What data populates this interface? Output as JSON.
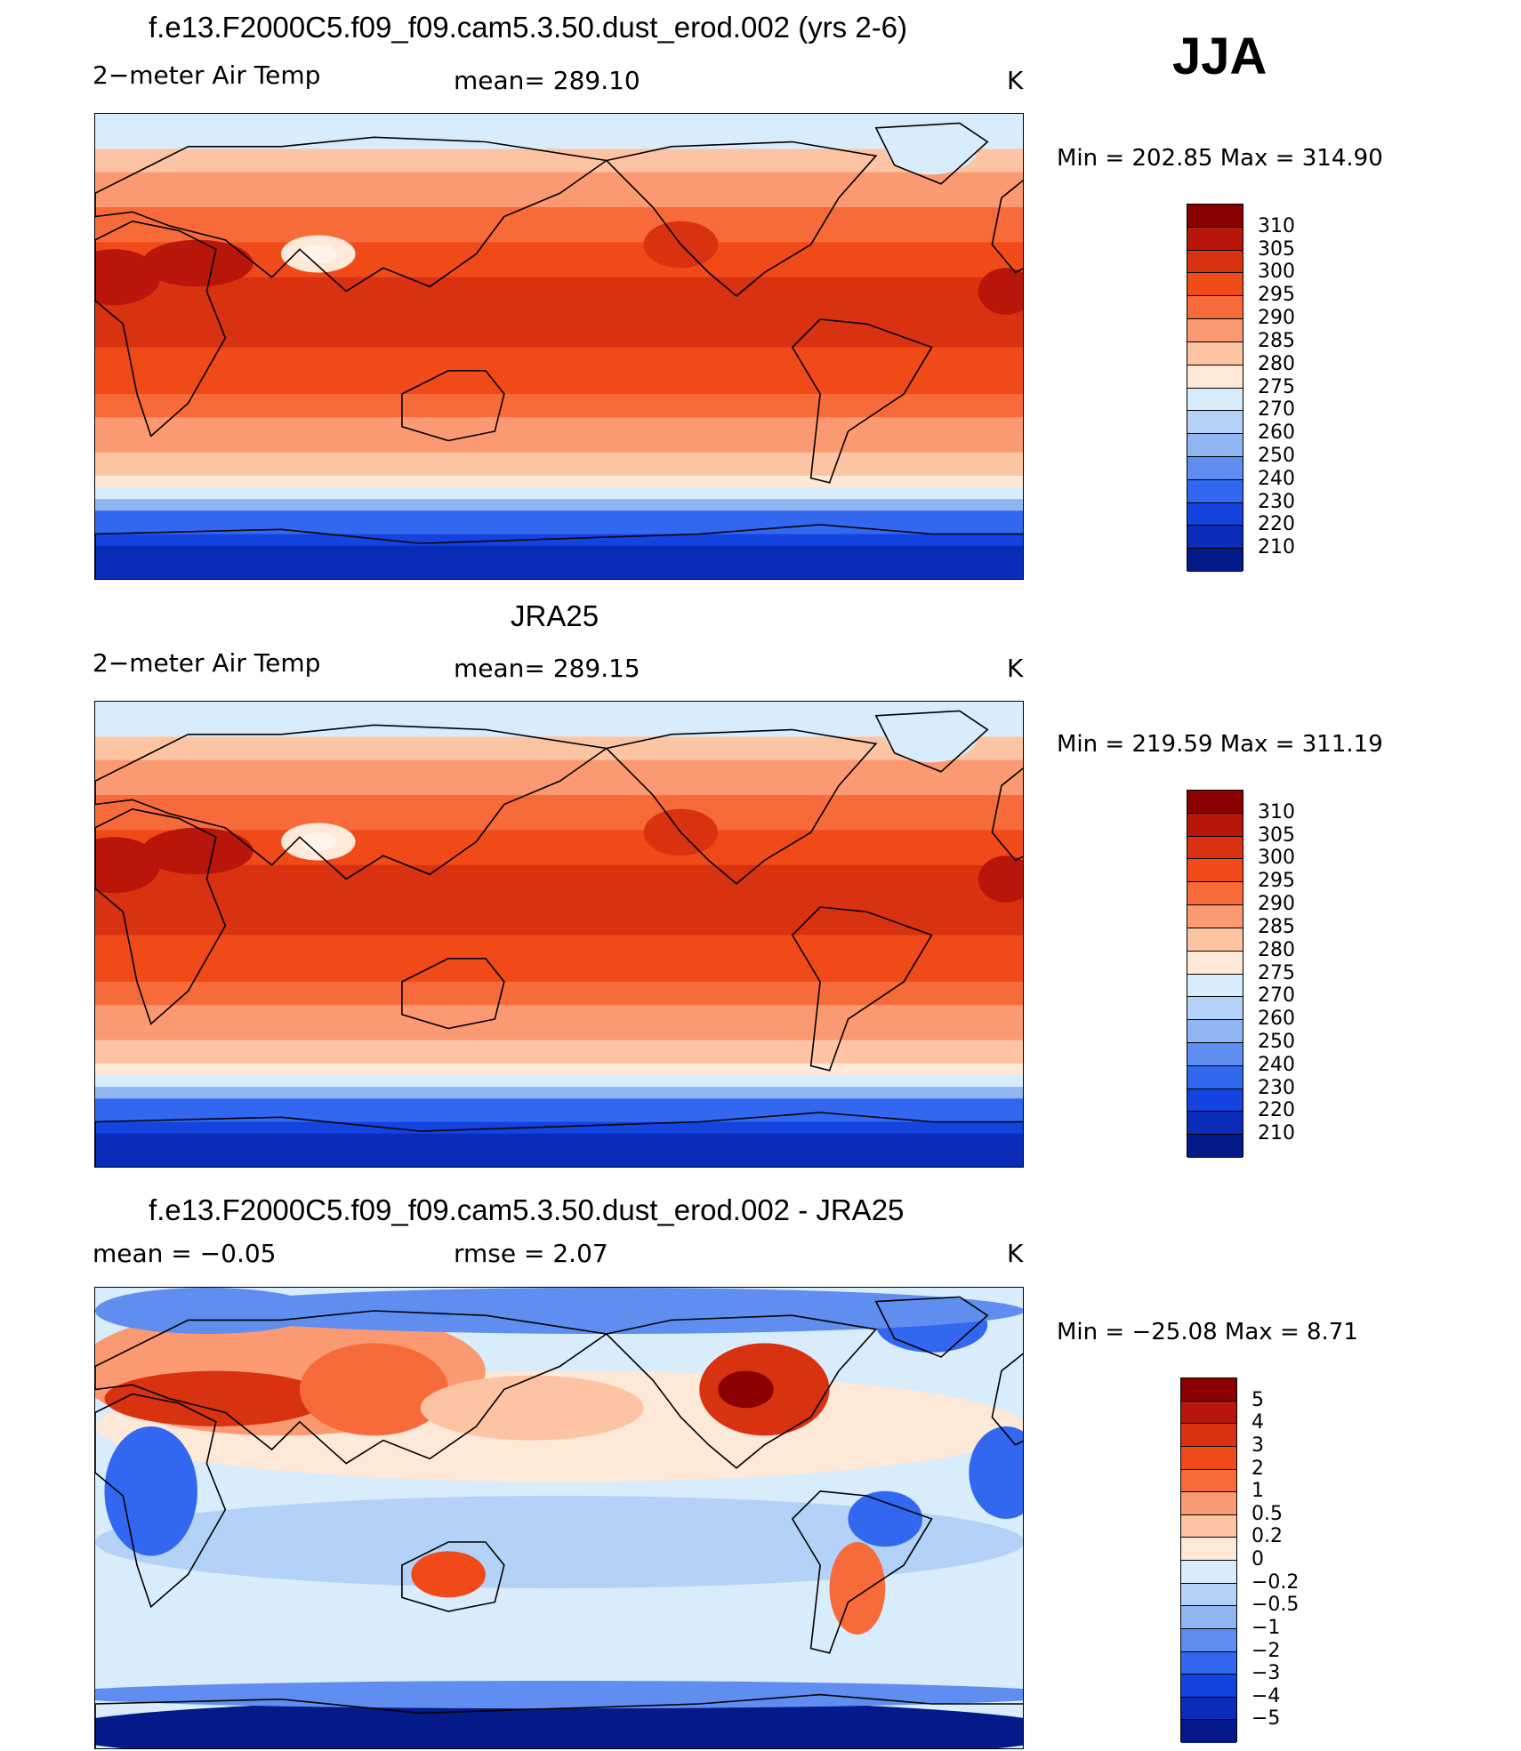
{
  "season": "JJA",
  "panels": [
    {
      "id": "model",
      "title": "f.e13.F2000C5.f09_f09.cam5.3.50.dust_erod.002 (yrs 2-6)",
      "left_label": "2−meter Air Temp",
      "center_label": "mean= 289.10",
      "units": "K",
      "minmax": "Min  =  202.85  Max  =  314.90",
      "colorbar_ticks": [
        "310",
        "305",
        "300",
        "295",
        "290",
        "285",
        "280",
        "275",
        "270",
        "260",
        "250",
        "240",
        "230",
        "220",
        "210"
      ],
      "colorbar_colors": [
        "#8b0000",
        "#b8160a",
        "#d83210",
        "#f04a18",
        "#f76b3a",
        "#fb9a72",
        "#fdc4a4",
        "#fee8d8",
        "#d9ecfb",
        "#b4d2f7",
        "#8fb6f2",
        "#5f8ef0",
        "#3268f0",
        "#1444e0",
        "#0a2cb8",
        "#031a88"
      ]
    },
    {
      "id": "obs",
      "title": "JRA25",
      "left_label": "2−meter Air Temp",
      "center_label": "mean= 289.15",
      "units": "K",
      "minmax": "Min  =  219.59  Max  =  311.19",
      "colorbar_ticks": [
        "310",
        "305",
        "300",
        "295",
        "290",
        "285",
        "280",
        "275",
        "270",
        "260",
        "250",
        "240",
        "230",
        "220",
        "210"
      ],
      "colorbar_colors": [
        "#8b0000",
        "#b8160a",
        "#d83210",
        "#f04a18",
        "#f76b3a",
        "#fb9a72",
        "#fdc4a4",
        "#fee8d8",
        "#d9ecfb",
        "#b4d2f7",
        "#8fb6f2",
        "#5f8ef0",
        "#3268f0",
        "#1444e0",
        "#0a2cb8",
        "#031a88"
      ]
    },
    {
      "id": "diff",
      "title": "f.e13.F2000C5.f09_f09.cam5.3.50.dust_erod.002 - JRA25",
      "left_label": "mean =    −0.05",
      "center_label": "rmse =     2.07",
      "units": "K",
      "minmax": "Min  =  −25.08  Max  =     8.71",
      "colorbar_ticks": [
        "5",
        "4",
        "3",
        "2",
        "1",
        "0.5",
        "0.2",
        "0",
        "−0.2",
        "−0.5",
        "−1",
        "−2",
        "−3",
        "−4",
        "−5"
      ],
      "colorbar_colors": [
        "#8b0000",
        "#b8160a",
        "#d83210",
        "#f04a18",
        "#f76b3a",
        "#fb9a72",
        "#fdc4a4",
        "#fee8d8",
        "#d9ecfb",
        "#b4d2f7",
        "#8fb6f2",
        "#5f8ef0",
        "#3268f0",
        "#1444e0",
        "#0a2cb8",
        "#031a88"
      ]
    }
  ],
  "chart_data": [
    {
      "type": "heatmap",
      "title": "f.e13.F2000C5.f09_f09.cam5.3.50.dust_erod.002 (yrs 2-6)",
      "variable": "2−meter Air Temp",
      "units": "K",
      "mean": 289.1,
      "min": 202.85,
      "max": 314.9,
      "contour_levels": [
        210,
        220,
        230,
        240,
        250,
        260,
        270,
        275,
        280,
        285,
        290,
        295,
        300,
        305,
        310
      ],
      "projection": "global cylindrical equidistant, centered on Pacific"
    },
    {
      "type": "heatmap",
      "title": "JRA25",
      "variable": "2−meter Air Temp",
      "units": "K",
      "mean": 289.15,
      "min": 219.59,
      "max": 311.19,
      "contour_levels": [
        210,
        220,
        230,
        240,
        250,
        260,
        270,
        275,
        280,
        285,
        290,
        295,
        300,
        305,
        310
      ],
      "projection": "global cylindrical equidistant, centered on Pacific"
    },
    {
      "type": "heatmap",
      "title": "f.e13.F2000C5.f09_f09.cam5.3.50.dust_erod.002 - JRA25",
      "units": "K",
      "mean": -0.05,
      "rmse": 2.07,
      "min": -25.08,
      "max": 8.71,
      "contour_levels": [
        -5,
        -4,
        -3,
        -2,
        -1,
        -0.5,
        -0.2,
        0,
        0.2,
        0.5,
        1,
        2,
        3,
        4,
        5
      ],
      "projection": "global cylindrical equidistant, centered on Pacific"
    }
  ]
}
